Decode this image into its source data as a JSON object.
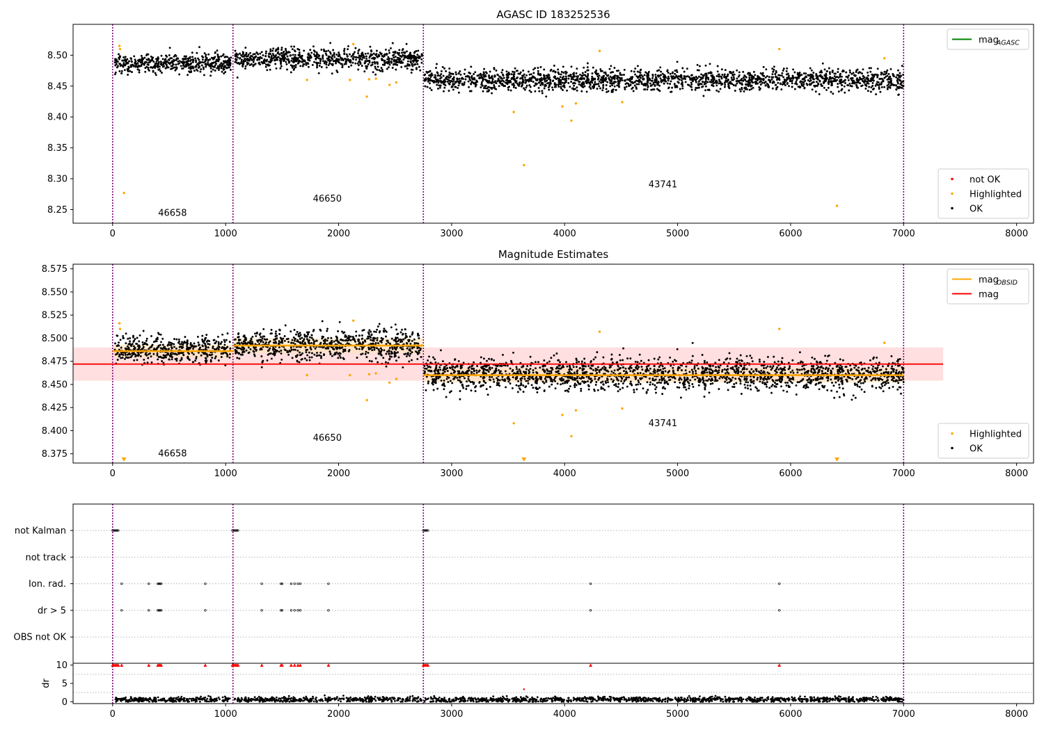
{
  "colors": {
    "ok": "#000000",
    "highlighted": "#ffa500",
    "not_ok": "#ff0000",
    "mag_agasc": "#008000",
    "mag_obsid": "#ffa500",
    "mag": "#ff0000",
    "band": "#ffc0c0",
    "obs_band": "#ffe4b5",
    "obs_boundary": "#800080",
    "grid": "#b0b0b0"
  },
  "chart_data": [
    {
      "type": "scatter",
      "title": "AGASC ID 183252536",
      "xlim": [
        -350,
        8150
      ],
      "ylim": [
        8.228,
        8.55
      ],
      "xticks": [
        0,
        1000,
        2000,
        3000,
        4000,
        5000,
        6000,
        7000,
        8000
      ],
      "yticks": [
        8.25,
        8.3,
        8.35,
        8.4,
        8.45,
        8.5
      ],
      "obs_boundaries": [
        0,
        1065,
        2750,
        7000
      ],
      "annotations": [
        {
          "text": "46658",
          "x": 530,
          "y": 8.24
        },
        {
          "text": "46650",
          "x": 1900,
          "y": 8.263
        },
        {
          "text": "43741",
          "x": 4870,
          "y": 8.286
        }
      ],
      "series_ok_segments": [
        {
          "x_start": 20,
          "x_end": 1050,
          "y_mean": 8.488,
          "spread": 0.007
        },
        {
          "x_start": 1080,
          "x_end": 2740,
          "y_mean": 8.493,
          "spread": 0.008
        },
        {
          "x_start": 2760,
          "x_end": 7000,
          "y_mean": 8.46,
          "spread": 0.008
        }
      ],
      "highlighted_points": [
        [
          60,
          8.515
        ],
        [
          65,
          8.51
        ],
        [
          100,
          8.277
        ],
        [
          1720,
          8.46
        ],
        [
          2130,
          8.518
        ],
        [
          2100,
          8.46
        ],
        [
          2250,
          8.433
        ],
        [
          2270,
          8.461
        ],
        [
          2330,
          8.462
        ],
        [
          2450,
          8.452
        ],
        [
          2510,
          8.456
        ],
        [
          3550,
          8.408
        ],
        [
          3640,
          8.322
        ],
        [
          3980,
          8.417
        ],
        [
          4060,
          8.394
        ],
        [
          4100,
          8.422
        ],
        [
          4310,
          8.507
        ],
        [
          4510,
          8.424
        ],
        [
          5900,
          8.51
        ],
        [
          6410,
          8.256
        ],
        [
          6830,
          8.495
        ]
      ],
      "legends": [
        {
          "position": "top-right",
          "entries": [
            {
              "label": "mag",
              "sub": "AGASC",
              "kind": "line",
              "color": "#008000"
            }
          ]
        },
        {
          "position": "bottom-right",
          "entries": [
            {
              "label": "not OK",
              "kind": "dot",
              "color": "#ff0000"
            },
            {
              "label": "Highlighted",
              "kind": "dot",
              "color": "#ffa500"
            },
            {
              "label": "OK",
              "kind": "dot",
              "color": "#000000"
            }
          ]
        }
      ]
    },
    {
      "type": "scatter",
      "title": "Magnitude Estimates",
      "xlim": [
        -350,
        8150
      ],
      "ylim": [
        8.365,
        8.58
      ],
      "xticks": [
        0,
        1000,
        2000,
        3000,
        4000,
        5000,
        6000,
        7000,
        8000
      ],
      "yticks": [
        8.375,
        8.4,
        8.425,
        8.45,
        8.475,
        8.5,
        8.525,
        8.55,
        8.575
      ],
      "obs_boundaries": [
        0,
        1065,
        2750,
        7000
      ],
      "mag": {
        "value": 8.472,
        "low": 8.454,
        "high": 8.49,
        "x_start": -350,
        "x_end": 7350
      },
      "mag_obsid": [
        {
          "x_start": 0,
          "x_end": 1065,
          "value": 8.486,
          "low": 8.479,
          "high": 8.493
        },
        {
          "x_start": 1065,
          "x_end": 2750,
          "value": 8.492,
          "low": 8.484,
          "high": 8.5
        },
        {
          "x_start": 2750,
          "x_end": 7000,
          "value": 8.46,
          "low": 8.452,
          "high": 8.468
        }
      ],
      "annotations": [
        {
          "text": "46658",
          "x": 530,
          "y": 8.372
        },
        {
          "text": "46650",
          "x": 1900,
          "y": 8.389
        },
        {
          "text": "43741",
          "x": 4870,
          "y": 8.405
        }
      ],
      "series_ok_segments": [
        {
          "x_start": 20,
          "x_end": 1050,
          "y_mean": 8.488,
          "spread": 0.007
        },
        {
          "x_start": 1080,
          "x_end": 2740,
          "y_mean": 8.493,
          "spread": 0.008
        },
        {
          "x_start": 2760,
          "x_end": 7000,
          "y_mean": 8.46,
          "spread": 0.008
        }
      ],
      "highlighted_points": [
        [
          60,
          8.516
        ],
        [
          65,
          8.51
        ],
        [
          1720,
          8.46
        ],
        [
          2130,
          8.519
        ],
        [
          2100,
          8.46
        ],
        [
          2250,
          8.433
        ],
        [
          2270,
          8.461
        ],
        [
          2330,
          8.462
        ],
        [
          2450,
          8.452
        ],
        [
          2510,
          8.456
        ],
        [
          3550,
          8.408
        ],
        [
          3980,
          8.417
        ],
        [
          4060,
          8.394
        ],
        [
          4100,
          8.422
        ],
        [
          4310,
          8.507
        ],
        [
          4510,
          8.424
        ],
        [
          5900,
          8.51
        ],
        [
          6830,
          8.495
        ]
      ],
      "out_of_range_markers": [
        100,
        3640,
        6410
      ],
      "legends": [
        {
          "position": "top-right",
          "entries": [
            {
              "label": "mag",
              "sub": "OBSID",
              "kind": "line",
              "color": "#ffa500"
            },
            {
              "label": "mag",
              "kind": "line",
              "color": "#ff0000"
            }
          ]
        },
        {
          "position": "bottom-right",
          "entries": [
            {
              "label": "Highlighted",
              "kind": "dot",
              "color": "#ffa500"
            },
            {
              "label": "OK",
              "kind": "dot",
              "color": "#000000"
            }
          ]
        }
      ]
    },
    {
      "type": "scatter",
      "title": "",
      "xlim": [
        -350,
        8150
      ],
      "categories": [
        "not Kalman",
        "not track",
        "Ion. rad.",
        "dr > 5",
        "OBS not OK"
      ],
      "obs_boundaries": [
        0,
        1065,
        2750,
        7000
      ],
      "flags": {
        "not Kalman": [
          0,
          10,
          20,
          30,
          40,
          50,
          1060,
          1070,
          1080,
          1090,
          1100,
          1110,
          2750,
          2760,
          2770,
          2780,
          2790
        ],
        "not track": [],
        "Ion. rad.": [
          80,
          320,
          400,
          410,
          420,
          430,
          820,
          1320,
          1490,
          1500,
          1580,
          1610,
          1640,
          1660,
          1910,
          4230,
          5900
        ],
        "dr > 5": [
          80,
          320,
          400,
          410,
          420,
          430,
          820,
          1320,
          1490,
          1500,
          1580,
          1610,
          1640,
          1660,
          1910,
          4230,
          5900
        ],
        "OBS not OK": []
      }
    },
    {
      "type": "scatter",
      "title": "",
      "ylabel": "dr",
      "xlim": [
        -350,
        8150
      ],
      "ylim": [
        -0.5,
        10.5
      ],
      "xticks": [
        0,
        1000,
        2000,
        3000,
        4000,
        5000,
        6000,
        7000,
        8000
      ],
      "yticks": [
        0,
        5,
        10
      ],
      "obs_boundaries": [
        0,
        1065,
        2750,
        7000
      ],
      "dr_clip_value": 10,
      "dr_clipped_points": [
        0,
        10,
        20,
        30,
        40,
        50,
        80,
        320,
        400,
        410,
        420,
        430,
        820,
        1060,
        1070,
        1080,
        1090,
        1100,
        1110,
        1320,
        1490,
        1500,
        1580,
        1610,
        1640,
        1660,
        1910,
        2750,
        2760,
        2770,
        2780,
        2790,
        4230,
        5900
      ],
      "dr_other_points": [
        [
          3640,
          3.4
        ]
      ],
      "dr_typical": {
        "mean": 0.6,
        "spread": 0.35
      }
    }
  ]
}
